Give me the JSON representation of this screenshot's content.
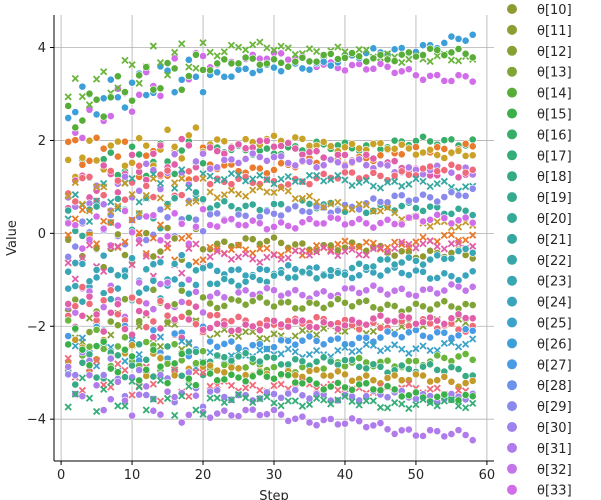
{
  "chart_data": {
    "type": "scatter",
    "xlabel": "Step",
    "ylabel": "Value",
    "xlim": [
      -1,
      61
    ],
    "ylim": [
      -4.9,
      4.7
    ],
    "xticks": [
      0,
      10,
      20,
      30,
      40,
      50,
      60
    ],
    "yticks": [
      -4,
      -2,
      0,
      2,
      4
    ],
    "grid": true,
    "legend_position": "right, clipped at top",
    "legend": [
      {
        "name": "θ[10]",
        "color": "#8f9a33"
      },
      {
        "name": "θ[11]",
        "color": "#8c9e34"
      },
      {
        "name": "θ[12]",
        "color": "#87a135"
      },
      {
        "name": "θ[13]",
        "color": "#80a536"
      },
      {
        "name": "θ[14]",
        "color": "#58ad39"
      },
      {
        "name": "θ[15]",
        "color": "#3bb049"
      },
      {
        "name": "θ[16]",
        "color": "#36ae67"
      },
      {
        "name": "θ[17]",
        "color": "#35ad78"
      },
      {
        "name": "θ[18]",
        "color": "#35ab85"
      },
      {
        "name": "θ[19]",
        "color": "#36aa8f"
      },
      {
        "name": "θ[20]",
        "color": "#36a998"
      },
      {
        "name": "θ[21]",
        "color": "#37a8a1"
      },
      {
        "name": "θ[22]",
        "color": "#38a7aa"
      },
      {
        "name": "θ[23]",
        "color": "#39a6b3"
      },
      {
        "name": "θ[24]",
        "color": "#3aa4bd"
      },
      {
        "name": "θ[25]",
        "color": "#3ca2c9"
      },
      {
        "name": "θ[26]",
        "color": "#3d9fd8"
      },
      {
        "name": "θ[27]",
        "color": "#4a9be6"
      },
      {
        "name": "θ[28]",
        "color": "#6c92ec"
      },
      {
        "name": "θ[29]",
        "color": "#8a8aec"
      },
      {
        "name": "θ[30]",
        "color": "#9e83ec"
      },
      {
        "name": "θ[31]",
        "color": "#b07ceb"
      },
      {
        "name": "θ[32]",
        "color": "#c276e9"
      },
      {
        "name": "θ[33]",
        "color": "#d16de8"
      }
    ],
    "steps": {
      "start": 1,
      "end": 58
    },
    "trajectories": [
      {
        "color": "#d16de8",
        "shape": "circle",
        "start": 2.1,
        "mid": 3.8,
        "end": 3.3
      },
      {
        "color": "#3d9fd8",
        "shape": "circle",
        "start": 2.7,
        "mid": 3.5,
        "end": 4.2
      },
      {
        "color": "#6ab53c",
        "shape": "cross",
        "start": 2.9,
        "mid": 4.0,
        "end": 3.7
      },
      {
        "color": "#58ad39",
        "shape": "circle",
        "start": 2.5,
        "mid": 3.7,
        "end": 3.9
      },
      {
        "color": "#36ae67",
        "shape": "circle",
        "start": 1.2,
        "mid": 1.8,
        "end": 2.0
      },
      {
        "color": "#ea7a2c",
        "shape": "circle",
        "start": 1.8,
        "mid": 1.4,
        "end": 1.9
      },
      {
        "color": "#c9a227",
        "shape": "circle",
        "start": 1.5,
        "mid": 2.0,
        "end": 1.7
      },
      {
        "color": "#e05fa8",
        "shape": "circle",
        "start": 0.8,
        "mid": 1.9,
        "end": 1.2
      },
      {
        "color": "#b07ceb",
        "shape": "circle",
        "start": 0.4,
        "mid": 1.6,
        "end": 1.3
      },
      {
        "color": "#ef6b7a",
        "shape": "circle",
        "start": 1.0,
        "mid": 1.1,
        "end": 1.4
      },
      {
        "color": "#37a8a1",
        "shape": "cross",
        "start": 0.5,
        "mid": 1.2,
        "end": 1.0
      },
      {
        "color": "#36a998",
        "shape": "circle",
        "start": 0.2,
        "mid": 0.6,
        "end": 0.5
      },
      {
        "color": "#8a8aec",
        "shape": "circle",
        "start": -0.2,
        "mid": 0.4,
        "end": 0.9
      },
      {
        "color": "#c49a2a",
        "shape": "cross",
        "start": 0.7,
        "mid": 0.9,
        "end": 0.1
      },
      {
        "color": "#8f9a33",
        "shape": "circle",
        "start": -0.4,
        "mid": -0.2,
        "end": -0.5
      },
      {
        "color": "#ea7a2c",
        "shape": "cross",
        "start": 0.3,
        "mid": -0.4,
        "end": -0.1
      },
      {
        "color": "#d16de8",
        "shape": "circle",
        "start": 0.0,
        "mid": 0.2,
        "end": 0.3
      },
      {
        "color": "#e05fa8",
        "shape": "cross",
        "start": -0.6,
        "mid": -0.5,
        "end": -0.2
      },
      {
        "color": "#3aa4bd",
        "shape": "circle",
        "start": -0.9,
        "mid": -0.8,
        "end": -0.9
      },
      {
        "color": "#39a6b3",
        "shape": "circle",
        "start": -1.2,
        "mid": -1.0,
        "end": -0.4
      },
      {
        "color": "#c276e9",
        "shape": "circle",
        "start": -1.5,
        "mid": -1.3,
        "end": -1.2
      },
      {
        "color": "#80a536",
        "shape": "circle",
        "start": -1.8,
        "mid": -1.5,
        "end": -1.6
      },
      {
        "color": "#87a135",
        "shape": "cross",
        "start": -2.0,
        "mid": -2.2,
        "end": -1.9
      },
      {
        "color": "#ef6b7a",
        "shape": "circle",
        "start": -1.4,
        "mid": -1.9,
        "end": -2.0
      },
      {
        "color": "#4a9be6",
        "shape": "circle",
        "start": -2.3,
        "mid": -2.4,
        "end": -2.1
      },
      {
        "color": "#e05fa8",
        "shape": "circle",
        "start": -1.7,
        "mid": -2.0,
        "end": -1.8
      },
      {
        "color": "#3ca2c9",
        "shape": "cross",
        "start": -2.6,
        "mid": -2.6,
        "end": -2.4
      },
      {
        "color": "#6ab53c",
        "shape": "circle",
        "start": -2.2,
        "mid": -2.9,
        "end": -2.7
      },
      {
        "color": "#36ab85",
        "shape": "circle",
        "start": -2.9,
        "mid": -2.7,
        "end": -3.0
      },
      {
        "color": "#c49a2a",
        "shape": "circle",
        "start": -2.5,
        "mid": -3.0,
        "end": -3.2
      },
      {
        "color": "#ef6b7a",
        "shape": "cross",
        "start": -3.0,
        "mid": -3.3,
        "end": -3.4
      },
      {
        "color": "#9e83ec",
        "shape": "circle",
        "start": -2.8,
        "mid": -3.5,
        "end": -3.5
      },
      {
        "color": "#3bb049",
        "shape": "circle",
        "start": -2.4,
        "mid": -3.1,
        "end": -3.6
      },
      {
        "color": "#b07ceb",
        "shape": "circle",
        "start": -3.2,
        "mid": -3.9,
        "end": -4.4
      },
      {
        "color": "#35ad78",
        "shape": "cross",
        "start": -3.4,
        "mid": -3.6,
        "end": -3.7
      }
    ]
  }
}
